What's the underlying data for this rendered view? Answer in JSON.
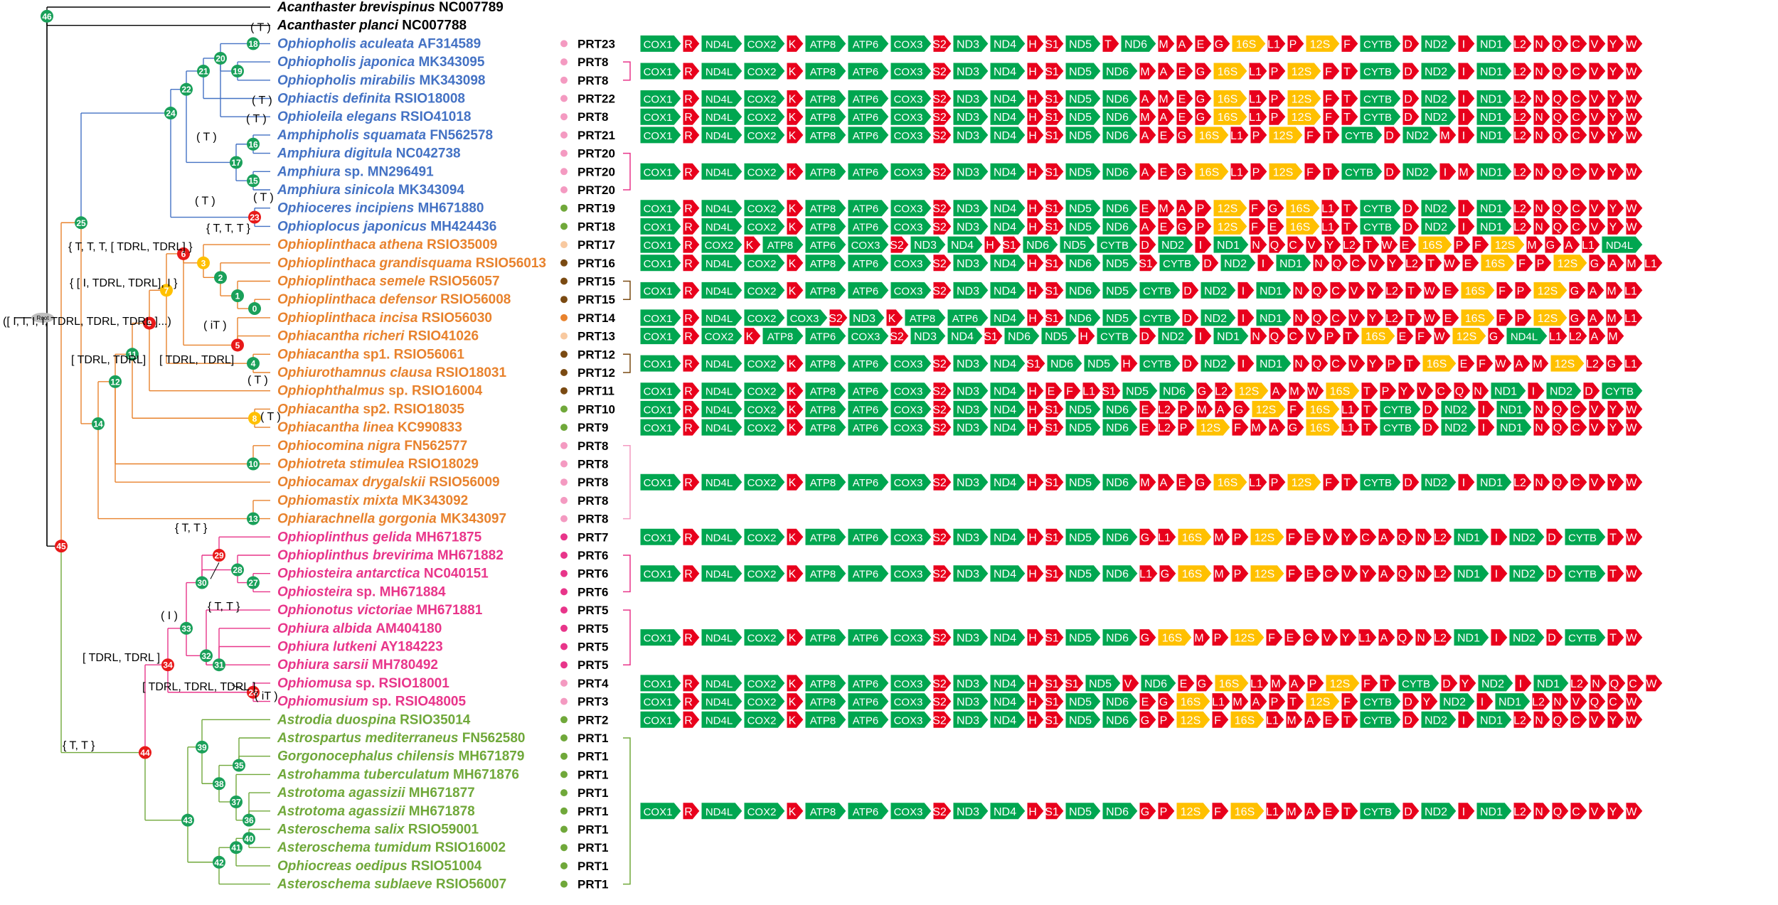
{
  "colors": {
    "black": "#000000",
    "blue": "#4472c4",
    "orange": "#e8822d",
    "pink": "#e8358a",
    "green": "#70a83a",
    "node_green": "#1aa05a",
    "node_red": "#e81919",
    "node_yellow": "#ffc000",
    "gray": "#bfbfbf",
    "gene_green": "#00a650",
    "gene_red": "#e8001c",
    "gene_yellow": "#ffc000"
  },
  "species": [
    {
      "italic": "Acanthaster brevispinus",
      "acc": "NC007789",
      "color": "black",
      "dot": "none",
      "prt": ""
    },
    {
      "italic": "Acanthaster planci",
      "acc": "NC007788",
      "color": "black",
      "dot": "none",
      "prt": ""
    },
    {
      "italic": "Ophiopholis aculeata",
      "acc": "AF314589",
      "color": "blue",
      "dot": "#f49ac1",
      "prt": "PRT23"
    },
    {
      "italic": "Ophiopholis japonica",
      "acc": "MK343095",
      "color": "blue",
      "dot": "#f49ac1",
      "prt": "PRT8"
    },
    {
      "italic": "Ophiopholis mirabilis",
      "acc": "MK343098",
      "color": "blue",
      "dot": "#f49ac1",
      "prt": "PRT8"
    },
    {
      "italic": "Ophiactis definita",
      "acc": "RSIO18008",
      "color": "blue",
      "dot": "#f49ac1",
      "prt": "PRT22"
    },
    {
      "italic": "Ophioleila elegans",
      "acc": "RSIO41018",
      "color": "blue",
      "dot": "#f49ac1",
      "prt": "PRT8"
    },
    {
      "italic": "Amphipholis squamata",
      "acc": "FN562578",
      "color": "blue",
      "dot": "#f49ac1",
      "prt": "PRT21"
    },
    {
      "italic": "Amphiura digitula",
      "acc": "NC042738",
      "color": "blue",
      "dot": "#f49ac1",
      "prt": "PRT20"
    },
    {
      "italic": "Amphiura",
      "plain": "sp.",
      "acc": "MN296491",
      "color": "blue",
      "dot": "#f49ac1",
      "prt": "PRT20"
    },
    {
      "italic": "Amphiura sinicola",
      "acc": "MK343094",
      "color": "blue",
      "dot": "#f49ac1",
      "prt": "PRT20"
    },
    {
      "italic": "Ophioceres incipiens",
      "acc": "MH671880",
      "color": "blue",
      "dot": "#70a83a",
      "prt": "PRT19"
    },
    {
      "italic": "Ophioplocus japonicus",
      "acc": "MH424436",
      "color": "blue",
      "dot": "#70a83a",
      "prt": "PRT18"
    },
    {
      "italic": "Ophioplinthaca athena",
      "acc": "RSIO35009",
      "color": "orange",
      "dot": "#f8c9a0",
      "prt": "PRT17"
    },
    {
      "italic": "Ophioplinthaca grandisquama",
      "acc": "RSIO56013",
      "color": "orange",
      "dot": "#7a4a12",
      "prt": "PRT16"
    },
    {
      "italic": "Ophioplinthaca semele",
      "acc": "RSIO56057",
      "color": "orange",
      "dot": "#7a4a12",
      "prt": "PRT15"
    },
    {
      "italic": "Ophioplinthaca defensor",
      "acc": "RSIO56008",
      "color": "orange",
      "dot": "#7a4a12",
      "prt": "PRT15"
    },
    {
      "italic": "Ophioplinthaca incisa",
      "acc": "RSIO56030",
      "color": "orange",
      "dot": "#e8822d",
      "prt": "PRT14"
    },
    {
      "italic": "Ophiacantha richeri",
      "acc": "RSIO41026",
      "color": "orange",
      "dot": "#f8c9a0",
      "prt": "PRT13"
    },
    {
      "italic": "Ophiacantha",
      "plain": "sp1.",
      "acc": "RSIO56061",
      "color": "orange",
      "dot": "#7a4a12",
      "prt": "PRT12"
    },
    {
      "italic": "Ophiurothamnus clausa",
      "acc": "RSIO18031",
      "color": "orange",
      "dot": "#7a4a12",
      "prt": "PRT12"
    },
    {
      "italic": "Ophiophthalmus",
      "plain": "sp.",
      "acc": "RSIO16004",
      "color": "orange",
      "dot": "#7a4a12",
      "prt": "PRT11"
    },
    {
      "italic": "Ophiacantha",
      "plain": "sp2.",
      "acc": "RSIO18035",
      "color": "orange",
      "dot": "#70a83a",
      "prt": "PRT10"
    },
    {
      "italic": "Ophiacantha linea",
      "acc": "KC990833",
      "color": "orange",
      "dot": "#70a83a",
      "prt": "PRT9"
    },
    {
      "italic": "Ophiocomina nigra",
      "acc": "FN562577",
      "color": "orange",
      "dot": "#f49ac1",
      "prt": "PRT8"
    },
    {
      "italic": "Ophiotreta stimulea",
      "acc": "RSIO18029",
      "color": "orange",
      "dot": "#f49ac1",
      "prt": "PRT8"
    },
    {
      "italic": "Ophiocamax drygalskii",
      "acc": "RSIO56009",
      "color": "orange",
      "dot": "#f49ac1",
      "prt": "PRT8"
    },
    {
      "italic": "Ophiomastix mixta",
      "acc": "MK343092",
      "color": "orange",
      "dot": "#f49ac1",
      "prt": "PRT8"
    },
    {
      "italic": "Ophiarachnella gorgonia",
      "acc": "MK343097",
      "color": "orange",
      "dot": "#f49ac1",
      "prt": "PRT8"
    },
    {
      "italic": "Ophioplinthus gelida",
      "acc": "MH671875",
      "color": "pink",
      "dot": "#e8358a",
      "prt": "PRT7"
    },
    {
      "italic": "Ophioplinthus brevirima",
      "acc": "MH671882",
      "color": "pink",
      "dot": "#e8358a",
      "prt": "PRT6"
    },
    {
      "italic": "Ophiosteira antarctica",
      "acc": "NC040151",
      "color": "pink",
      "dot": "#e8358a",
      "prt": "PRT6"
    },
    {
      "italic": "Ophiosteira",
      "plain": "sp.",
      "acc": "MH671884",
      "color": "pink",
      "dot": "#e8358a",
      "prt": "PRT6"
    },
    {
      "italic": "Ophionotus victoriae",
      "acc": "MH671881",
      "color": "pink",
      "dot": "#e8358a",
      "prt": "PRT5"
    },
    {
      "italic": "Ophiura albida",
      "acc": "AM404180",
      "color": "pink",
      "dot": "#e8358a",
      "prt": "PRT5"
    },
    {
      "italic": "Ophiura lutkeni",
      "acc": "AY184223",
      "color": "pink",
      "dot": "#e8358a",
      "prt": "PRT5"
    },
    {
      "italic": "Ophiura sarsii",
      "acc": "MH780492",
      "color": "pink",
      "dot": "#e8358a",
      "prt": "PRT5"
    },
    {
      "italic": "Ophiomusa",
      "plain": "sp.",
      "acc": "RSIO18001",
      "color": "pink",
      "dot": "#f49ac1",
      "prt": "PRT4"
    },
    {
      "italic": "Ophiomusium",
      "plain": "sp.",
      "acc": "RSIO48005",
      "color": "pink",
      "dot": "#f49ac1",
      "prt": "PRT3"
    },
    {
      "italic": "Astrodia duospina",
      "acc": "RSIO35014",
      "color": "green",
      "dot": "#70a83a",
      "prt": "PRT2"
    },
    {
      "italic": "Astrospartus mediterraneus",
      "acc": "FN562580",
      "color": "green",
      "dot": "#70a83a",
      "prt": "PRT1"
    },
    {
      "italic": "Gorgonocephalus chilensis",
      "acc": "MH671879",
      "color": "green",
      "dot": "#70a83a",
      "prt": "PRT1"
    },
    {
      "italic": "Astrohamma tuberculatum",
      "acc": "MH671876",
      "color": "green",
      "dot": "#70a83a",
      "prt": "PRT1"
    },
    {
      "italic": "Astrotoma agassizii",
      "acc": "MH671877",
      "color": "green",
      "dot": "#70a83a",
      "prt": "PRT1"
    },
    {
      "italic": "Astrotoma agassizii",
      "acc": "MH671878",
      "color": "green",
      "dot": "#70a83a",
      "prt": "PRT1"
    },
    {
      "italic": "Asteroschema salix",
      "acc": "RSIO59001",
      "color": "green",
      "dot": "#70a83a",
      "prt": "PRT1"
    },
    {
      "italic": "Asteroschema tumidum",
      "acc": "RSIO16002",
      "color": "green",
      "dot": "#70a83a",
      "prt": "PRT1"
    },
    {
      "italic": "Ophiocreas oedipus",
      "acc": "RSIO51004",
      "color": "green",
      "dot": "#70a83a",
      "prt": "PRT1"
    },
    {
      "italic": "Asteroschema sublaeve",
      "acc": "RSIO56007",
      "color": "green",
      "dot": "#70a83a",
      "prt": "PRT1"
    }
  ],
  "prt_groups": [
    {
      "rows": [
        3,
        4
      ],
      "color": "#e8358a"
    },
    {
      "rows": [
        8,
        10
      ],
      "color": "#e8358a"
    },
    {
      "rows": [
        15,
        16
      ],
      "color": "#7a4a12"
    },
    {
      "rows": [
        19,
        20
      ],
      "color": "#7a4a12"
    },
    {
      "rows": [
        24,
        28
      ],
      "color": "#f49ac1"
    },
    {
      "rows": [
        30,
        32
      ],
      "color": "#e8358a"
    },
    {
      "rows": [
        33,
        36
      ],
      "color": "#e8358a"
    },
    {
      "rows": [
        40,
        48
      ],
      "color": "#70a83a"
    }
  ],
  "gene_rows": [
    {
      "row": 2,
      "genes": "COX1 R ND4L COX2 K ATP8 ATP6 COX3 S2 ND3 ND4 H S1 ND5 T ND6 M A E G 16S L1 P 12S F CYTB D ND2 I ND1 L2 N Q C V Y W"
    },
    {
      "row": 3.5,
      "genes": "COX1 R ND4L COX2 K ATP8 ATP6 COX3 S2 ND3 ND4 H S1 ND5 ND6 M A E G 16S L1 P 12S F T CYTB D ND2 I ND1 L2 N Q C V Y W"
    },
    {
      "row": 5,
      "genes": "COX1 R ND4L COX2 K ATP8 ATP6 COX3 S2 ND3 ND4 H S1 ND5 ND6 A M E G 16S L1 P 12S F T CYTB D ND2 I ND1 L2 N Q C V Y W"
    },
    {
      "row": 6,
      "genes": "COX1 R ND4L COX2 K ATP8 ATP6 COX3 S2 ND3 ND4 H S1 ND5 ND6 M A E G 16S L1 P 12S F T CYTB D ND2 I ND1 L2 N Q C V Y W"
    },
    {
      "row": 7,
      "genes": "COX1 R ND4L COX2 K ATP8 ATP6 COX3 S2 ND3 ND4 H S1 ND5 ND6 A E G 16S L1 P 12S F T CYTB D ND2 M I ND1 L2 N Q C V Y W"
    },
    {
      "row": 9,
      "genes": "COX1 R ND4L COX2 K ATP8 ATP6 COX3 S2 ND3 ND4 H S1 ND5 ND6 A E G 16S L1 P 12S F T CYTB D ND2 I M ND1 L2 N Q C V Y W"
    },
    {
      "row": 11,
      "genes": "COX1 R ND4L COX2 K ATP8 ATP6 COX3 S2 ND3 ND4 H S1 ND5 ND6 E M A P 12S F G 16S L1 T CYTB D ND2 I ND1 L2 N Q C V Y W"
    },
    {
      "row": 12,
      "genes": "COX1 R ND4L COX2 K ATP8 ATP6 COX3 S2 ND3 ND4 H S1 ND5 ND6 A E G P 12S F E 16S L1 T CYTB D ND2 I ND1 L2 N Q C V Y W"
    },
    {
      "row": 13,
      "genes": "COX1 R COX2 K ATP8 ATP6 COX3 S2 ND3 ND4 H S1 ND6 ND5 CYTB D ND2 I ND1 N Q C V Y L2 T W E 16S P F 12S M G A L1 ND4L"
    },
    {
      "row": 14,
      "genes": "COX1 R ND4L COX2 K ATP8 ATP6 COX3 S2 ND3 ND4 H S1 ND6 ND5 S1 CYTB D ND2 I ND1 N Q C V Y L2 T W E 16S F P 12S G A M L1"
    },
    {
      "row": 15.5,
      "genes": "COX1 R ND4L COX2 K ATP8 ATP6 COX3 S2 ND3 ND4 H S1 ND6 ND5 CYTB D ND2 I ND1 N Q C V Y L2 T W E 16S F P 12S G A M L1"
    },
    {
      "row": 17,
      "genes": "COX1 R ND4L COX2 COX3 S2 ND3 K ATP8 ATP6 ND4 H S1 ND6 ND5 CYTB D ND2 I ND1 N Q C V Y L2 T W E 16S F P 12S G A M L1"
    },
    {
      "row": 18,
      "genes": "COX1 R COX2 K ATP8 ATP6 COX3 S2 ND3 ND4 S1 ND6 ND5 H CYTB D ND2 I ND1 N Q C V P T 16S E F W 12S G ND4L L1 L2 A M"
    },
    {
      "row": 19.5,
      "genes": "COX1 R ND4L COX2 K ATP8 ATP6 COX3 S2 ND3 ND4 S1 ND6 ND5 H CYTB D ND2 I ND1 N Q C V Y P T 16S E F W A M 12S L2 G L1"
    },
    {
      "row": 21,
      "genes": "COX1 R ND4L COX2 K ATP8 ATP6 COX3 S2 ND3 ND4 H E F L1 S1 ND5 ND6 G L2 12S A M W 16S T P Y V C Q N ND1 I ND2 D CYTB"
    },
    {
      "row": 22,
      "genes": "COX1 R ND4L COX2 K ATP8 ATP6 COX3 S2 ND3 ND4 H S1 ND5 ND6 E L2 P M A G 12S F 16S L1 T CYTB D ND2 I ND1 N Q C V Y W"
    },
    {
      "row": 23,
      "genes": "COX1 R ND4L COX2 K ATP8 ATP6 COX3 S2 ND3 ND4 H S1 ND5 ND6 E L2 P 12S F M A G 16S L1 T CYTB D ND2 I ND1 N Q C V Y W"
    },
    {
      "row": 26,
      "genes": "COX1 R ND4L COX2 K ATP8 ATP6 COX3 S2 ND3 ND4 H S1 ND5 ND6 M A E G 16S L1 P 12S F T CYTB D ND2 I ND1 L2 N Q C V Y W"
    },
    {
      "row": 29,
      "genes": "COX1 R ND4L COX2 K ATP8 ATP6 COX3 S2 ND3 ND4 H S1 ND5 ND6 G L1 16S M P 12S F E V Y C A Q N L2 ND1 I ND2 D CYTB T W"
    },
    {
      "row": 31,
      "genes": "COX1 R ND4L COX2 K ATP8 ATP6 COX3 S2 ND3 ND4 H S1 ND5 ND6 L1 G 16S M P 12S F E C V Y A Q N L2 ND1 I ND2 D CYTB T W"
    },
    {
      "row": 34.5,
      "genes": "COX1 R ND4L COX2 K ATP8 ATP6 COX3 S2 ND3 ND4 H S1 ND5 ND6 G 16S M P 12S F E C V Y L1 A Q N L2 ND1 I ND2 D CYTB T W"
    },
    {
      "row": 37,
      "genes": "COX1 R ND4L COX2 K ATP8 ATP6 COX3 S2 ND3 ND4 H S1 S1 ND5 V ND6 E G 16S L1 M A P 12S F T CYTB D Y ND2 I ND1 L2 N Q C W"
    },
    {
      "row": 38,
      "genes": "COX1 R ND4L COX2 K ATP8 ATP6 COX3 S2 ND3 ND4 H S1 ND5 ND6 E G 16S L1 M A P T 12S F CYTB D Y ND2 I ND1 L2 N V Q C W"
    },
    {
      "row": 39,
      "genes": "COX1 R ND4L COX2 K ATP8 ATP6 COX3 S2 ND3 ND4 H S1 ND5 ND6 G P 12S F 16S L1 M A E T CYTB D ND2 I ND1 L2 N Q C V Y W"
    },
    {
      "row": 44,
      "genes": "COX1 R ND4L COX2 K ATP8 ATP6 COX3 S2 ND3 ND4 H S1 ND5 ND6 G P 12S F 16S L1 M A E T CYTB D ND2 I ND1 L2 N Q C V Y W"
    }
  ],
  "reverse_genes": [
    "M",
    "A",
    "E",
    "G",
    "16S",
    "L1",
    "P",
    "12S",
    "F",
    "T",
    "S1",
    "L2",
    "N",
    "Q",
    "C",
    "V",
    "Y",
    "W",
    "ND4L",
    "G",
    "CYTB",
    "D",
    "ND2",
    "I",
    "ND1",
    "ND6",
    "ND5",
    "E",
    "H",
    "K",
    "R",
    "S2"
  ],
  "tree": {
    "root_label": "Root",
    "nodes": [
      {
        "id": "46",
        "color": "node_green"
      },
      {
        "id": "45",
        "color": "node_red"
      },
      {
        "id": "44",
        "color": "node_red"
      },
      {
        "id": "43",
        "color": "node_green"
      },
      {
        "id": "42",
        "color": "node_green"
      },
      {
        "id": "41",
        "color": "node_green"
      },
      {
        "id": "40",
        "color": "node_green"
      },
      {
        "id": "39",
        "color": "node_green"
      },
      {
        "id": "38",
        "color": "node_green"
      },
      {
        "id": "37",
        "color": "node_green"
      },
      {
        "id": "36",
        "color": "node_green"
      },
      {
        "id": "35",
        "color": "node_green"
      },
      {
        "id": "34",
        "color": "node_red"
      },
      {
        "id": "33",
        "color": "node_green"
      },
      {
        "id": "32",
        "color": "node_green"
      },
      {
        "id": "31",
        "color": "node_green"
      },
      {
        "id": "30",
        "color": "node_green"
      },
      {
        "id": "29",
        "color": "node_red"
      },
      {
        "id": "28",
        "color": "node_green"
      },
      {
        "id": "27",
        "color": "node_green"
      },
      {
        "id": "26",
        "color": "node_red"
      },
      {
        "id": "25",
        "color": "node_green"
      },
      {
        "id": "24",
        "color": "node_green"
      },
      {
        "id": "23",
        "color": "node_red"
      },
      {
        "id": "22",
        "color": "node_green"
      },
      {
        "id": "21",
        "color": "node_green"
      },
      {
        "id": "20",
        "color": "node_green"
      },
      {
        "id": "19",
        "color": "node_green"
      },
      {
        "id": "18",
        "color": "node_green"
      },
      {
        "id": "17",
        "color": "node_green"
      },
      {
        "id": "16",
        "color": "node_green"
      },
      {
        "id": "15",
        "color": "node_green"
      },
      {
        "id": "14",
        "color": "node_green"
      },
      {
        "id": "13",
        "color": "node_green"
      },
      {
        "id": "12",
        "color": "node_green"
      },
      {
        "id": "11",
        "color": "node_green"
      },
      {
        "id": "10",
        "color": "node_green"
      },
      {
        "id": "9",
        "color": "node_red"
      },
      {
        "id": "8",
        "color": "node_yellow"
      },
      {
        "id": "7",
        "color": "node_yellow"
      },
      {
        "id": "6",
        "color": "node_red"
      },
      {
        "id": "5",
        "color": "node_red"
      },
      {
        "id": "4",
        "color": "node_green"
      },
      {
        "id": "3",
        "color": "node_yellow"
      },
      {
        "id": "2",
        "color": "node_green"
      },
      {
        "id": "1",
        "color": "node_green"
      },
      {
        "id": "0",
        "color": "node_green"
      }
    ],
    "annotations": [
      "( T )",
      "( T )",
      "( T )",
      "( T )",
      "( T )",
      "( T )",
      "{ T, T, T }",
      "{ T, T, T, [ TDRL, TDRL] }",
      "{ [ I, TDRL, TDRL], I }",
      "([ I, I, I, I, TDRL, TDRL, TDRL ]...)",
      "( iT )",
      "[ TDRL, TDRL]",
      "[ TDRL, TDRL]",
      "( T )",
      "( T )",
      "{ T, T }",
      "{ T, T }",
      "( I )",
      "[ TDRL,  TDRL ]",
      "[ TDRL,  TDRL,  TDRL ]",
      "( iT )",
      "{ T, T }"
    ]
  }
}
